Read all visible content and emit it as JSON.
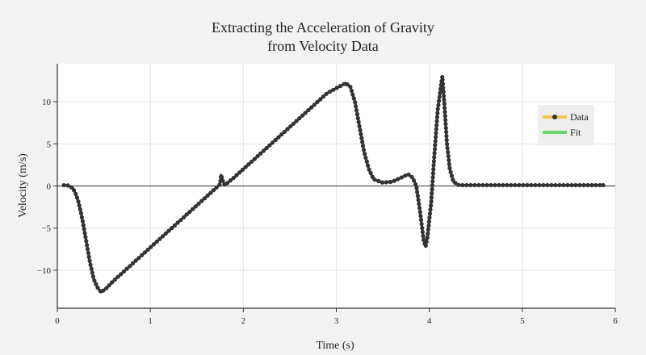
{
  "chart_data": {
    "type": "line",
    "title": "Extracting the Acceleration of Gravity",
    "subtitle": "from Velocity Data",
    "xlabel": "Time (s)",
    "ylabel": "Velocity (m/s)",
    "xlim": [
      0,
      6
    ],
    "ylim": [
      -14.5,
      14.5
    ],
    "x_ticks": [
      0,
      1,
      2,
      3,
      4,
      5,
      6
    ],
    "y_ticks": [
      -10,
      -5,
      0,
      5,
      10
    ],
    "x_tick_labels": [
      "0",
      "1",
      "2",
      "3",
      "4",
      "5",
      "6"
    ],
    "y_tick_labels": [
      "−10",
      "−5",
      "0",
      "5",
      "10"
    ],
    "grid": true,
    "zero_line": true,
    "legend_position": "right",
    "series": [
      {
        "name": "Data",
        "legend_color": "#f2c74e",
        "marker_color": "#333333",
        "line_color": "#555555",
        "points": [
          [
            0.07,
            0.1
          ],
          [
            0.12,
            0.05
          ],
          [
            0.17,
            -0.3
          ],
          [
            0.2,
            -1.0
          ],
          [
            0.23,
            -2.0
          ],
          [
            0.27,
            -4.0
          ],
          [
            0.31,
            -6.5
          ],
          [
            0.35,
            -9.0
          ],
          [
            0.39,
            -11.0
          ],
          [
            0.43,
            -12.0
          ],
          [
            0.47,
            -12.6
          ],
          [
            0.52,
            -12.2
          ],
          [
            0.6,
            -11.3
          ],
          [
            0.7,
            -10.3
          ],
          [
            0.8,
            -9.3
          ],
          [
            0.9,
            -8.3
          ],
          [
            1.0,
            -7.3
          ],
          [
            1.1,
            -6.3
          ],
          [
            1.2,
            -5.3
          ],
          [
            1.3,
            -4.3
          ],
          [
            1.4,
            -3.3
          ],
          [
            1.5,
            -2.3
          ],
          [
            1.6,
            -1.3
          ],
          [
            1.7,
            -0.3
          ],
          [
            1.75,
            0.2
          ],
          [
            1.76,
            1.3
          ],
          [
            1.77,
            1.0
          ],
          [
            1.78,
            0.6
          ],
          [
            1.8,
            0.1
          ],
          [
            1.9,
            1.0
          ],
          [
            2.0,
            2.0
          ],
          [
            2.1,
            3.0
          ],
          [
            2.2,
            4.0
          ],
          [
            2.3,
            5.0
          ],
          [
            2.4,
            6.0
          ],
          [
            2.5,
            7.0
          ],
          [
            2.6,
            8.0
          ],
          [
            2.7,
            9.0
          ],
          [
            2.8,
            10.0
          ],
          [
            2.9,
            11.0
          ],
          [
            3.0,
            11.6
          ],
          [
            3.1,
            12.2
          ],
          [
            3.15,
            11.8
          ],
          [
            3.2,
            10.0
          ],
          [
            3.25,
            7.0
          ],
          [
            3.3,
            4.0
          ],
          [
            3.35,
            2.0
          ],
          [
            3.4,
            0.8
          ],
          [
            3.5,
            0.4
          ],
          [
            3.6,
            0.5
          ],
          [
            3.7,
            1.0
          ],
          [
            3.77,
            1.4
          ],
          [
            3.82,
            1.0
          ],
          [
            3.86,
            0.0
          ],
          [
            3.9,
            -3.0
          ],
          [
            3.94,
            -6.5
          ],
          [
            3.96,
            -7.2
          ],
          [
            3.98,
            -6.0
          ],
          [
            4.02,
            -2.0
          ],
          [
            4.05,
            3.0
          ],
          [
            4.09,
            9.0
          ],
          [
            4.12,
            11.5
          ],
          [
            4.14,
            13.0
          ],
          [
            4.16,
            10.0
          ],
          [
            4.19,
            5.0
          ],
          [
            4.22,
            2.0
          ],
          [
            4.26,
            0.5
          ],
          [
            4.32,
            0.1
          ],
          [
            4.5,
            0.1
          ],
          [
            4.8,
            0.1
          ],
          [
            5.1,
            0.1
          ],
          [
            5.4,
            0.1
          ],
          [
            5.7,
            0.1
          ],
          [
            5.87,
            0.1
          ]
        ]
      },
      {
        "name": "Fit",
        "legend_color": "#6cd56c"
      }
    ]
  }
}
